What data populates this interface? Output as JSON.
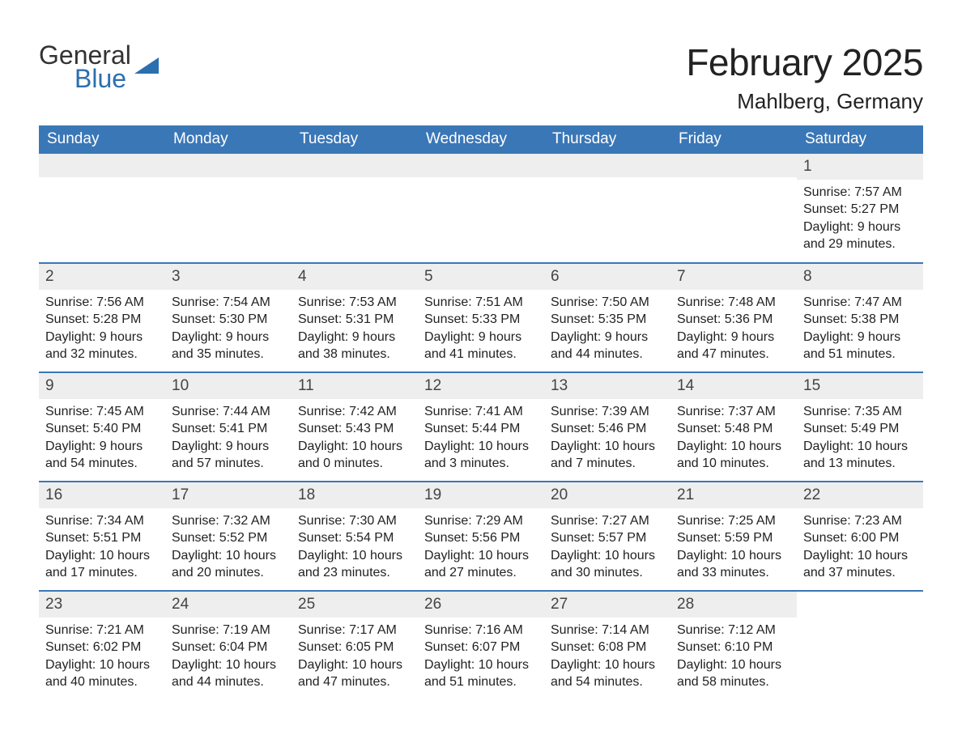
{
  "logo": {
    "word1": "General",
    "word2": "Blue",
    "triangle_color": "#2b6fb0",
    "text1_color": "#333333",
    "text2_color": "#2b6fb0"
  },
  "title": {
    "month": "February 2025",
    "location": "Mahlberg, Germany"
  },
  "colors": {
    "header_bg": "#3a77b7",
    "header_text": "#ffffff",
    "week_divider": "#3a77b7",
    "daynum_bg": "#eeeeee",
    "daynum_text": "#444444",
    "body_text": "#222222",
    "page_bg": "#ffffff"
  },
  "typography": {
    "title_month_fontsize": 46,
    "title_location_fontsize": 26,
    "dow_fontsize": 19,
    "daynum_fontsize": 19,
    "body_fontsize": 16,
    "font_family": "Arial"
  },
  "layout": {
    "columns": 7,
    "rows": 5,
    "leading_blanks": 6,
    "trailing_blanks": 1
  },
  "days_of_week": [
    "Sunday",
    "Monday",
    "Tuesday",
    "Wednesday",
    "Thursday",
    "Friday",
    "Saturday"
  ],
  "days": [
    {
      "n": 1,
      "sunrise": "7:57 AM",
      "sunset": "5:27 PM",
      "daylight": "9 hours and 29 minutes."
    },
    {
      "n": 2,
      "sunrise": "7:56 AM",
      "sunset": "5:28 PM",
      "daylight": "9 hours and 32 minutes."
    },
    {
      "n": 3,
      "sunrise": "7:54 AM",
      "sunset": "5:30 PM",
      "daylight": "9 hours and 35 minutes."
    },
    {
      "n": 4,
      "sunrise": "7:53 AM",
      "sunset": "5:31 PM",
      "daylight": "9 hours and 38 minutes."
    },
    {
      "n": 5,
      "sunrise": "7:51 AM",
      "sunset": "5:33 PM",
      "daylight": "9 hours and 41 minutes."
    },
    {
      "n": 6,
      "sunrise": "7:50 AM",
      "sunset": "5:35 PM",
      "daylight": "9 hours and 44 minutes."
    },
    {
      "n": 7,
      "sunrise": "7:48 AM",
      "sunset": "5:36 PM",
      "daylight": "9 hours and 47 minutes."
    },
    {
      "n": 8,
      "sunrise": "7:47 AM",
      "sunset": "5:38 PM",
      "daylight": "9 hours and 51 minutes."
    },
    {
      "n": 9,
      "sunrise": "7:45 AM",
      "sunset": "5:40 PM",
      "daylight": "9 hours and 54 minutes."
    },
    {
      "n": 10,
      "sunrise": "7:44 AM",
      "sunset": "5:41 PM",
      "daylight": "9 hours and 57 minutes."
    },
    {
      "n": 11,
      "sunrise": "7:42 AM",
      "sunset": "5:43 PM",
      "daylight": "10 hours and 0 minutes."
    },
    {
      "n": 12,
      "sunrise": "7:41 AM",
      "sunset": "5:44 PM",
      "daylight": "10 hours and 3 minutes."
    },
    {
      "n": 13,
      "sunrise": "7:39 AM",
      "sunset": "5:46 PM",
      "daylight": "10 hours and 7 minutes."
    },
    {
      "n": 14,
      "sunrise": "7:37 AM",
      "sunset": "5:48 PM",
      "daylight": "10 hours and 10 minutes."
    },
    {
      "n": 15,
      "sunrise": "7:35 AM",
      "sunset": "5:49 PM",
      "daylight": "10 hours and 13 minutes."
    },
    {
      "n": 16,
      "sunrise": "7:34 AM",
      "sunset": "5:51 PM",
      "daylight": "10 hours and 17 minutes."
    },
    {
      "n": 17,
      "sunrise": "7:32 AM",
      "sunset": "5:52 PM",
      "daylight": "10 hours and 20 minutes."
    },
    {
      "n": 18,
      "sunrise": "7:30 AM",
      "sunset": "5:54 PM",
      "daylight": "10 hours and 23 minutes."
    },
    {
      "n": 19,
      "sunrise": "7:29 AM",
      "sunset": "5:56 PM",
      "daylight": "10 hours and 27 minutes."
    },
    {
      "n": 20,
      "sunrise": "7:27 AM",
      "sunset": "5:57 PM",
      "daylight": "10 hours and 30 minutes."
    },
    {
      "n": 21,
      "sunrise": "7:25 AM",
      "sunset": "5:59 PM",
      "daylight": "10 hours and 33 minutes."
    },
    {
      "n": 22,
      "sunrise": "7:23 AM",
      "sunset": "6:00 PM",
      "daylight": "10 hours and 37 minutes."
    },
    {
      "n": 23,
      "sunrise": "7:21 AM",
      "sunset": "6:02 PM",
      "daylight": "10 hours and 40 minutes."
    },
    {
      "n": 24,
      "sunrise": "7:19 AM",
      "sunset": "6:04 PM",
      "daylight": "10 hours and 44 minutes."
    },
    {
      "n": 25,
      "sunrise": "7:17 AM",
      "sunset": "6:05 PM",
      "daylight": "10 hours and 47 minutes."
    },
    {
      "n": 26,
      "sunrise": "7:16 AM",
      "sunset": "6:07 PM",
      "daylight": "10 hours and 51 minutes."
    },
    {
      "n": 27,
      "sunrise": "7:14 AM",
      "sunset": "6:08 PM",
      "daylight": "10 hours and 54 minutes."
    },
    {
      "n": 28,
      "sunrise": "7:12 AM",
      "sunset": "6:10 PM",
      "daylight": "10 hours and 58 minutes."
    }
  ],
  "labels": {
    "sunrise": "Sunrise:",
    "sunset": "Sunset:",
    "daylight": "Daylight:"
  }
}
